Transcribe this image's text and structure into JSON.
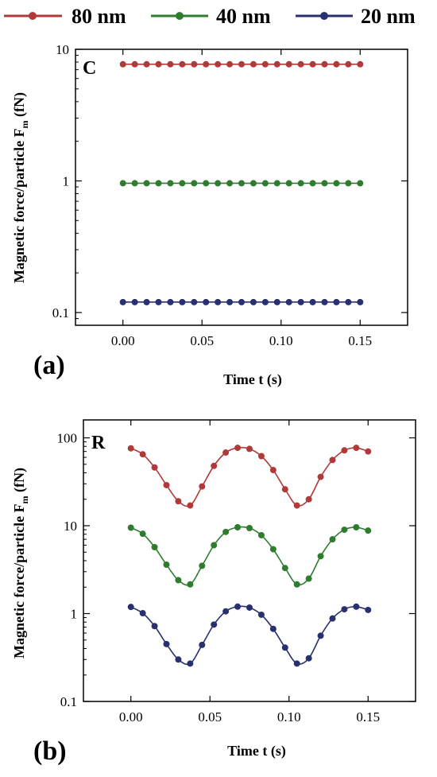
{
  "legend": [
    {
      "label": "80 nm",
      "color": "#b03a3a"
    },
    {
      "label": "40 nm",
      "color": "#2e7d2e"
    },
    {
      "label": "20 nm",
      "color": "#283070"
    }
  ],
  "panels": {
    "a": {
      "tag": "(a)",
      "letter": "C",
      "xlabel": "Time t (s)",
      "ylabel": "Magnetic force/particle F",
      "ylabel_sub": "m",
      "ylabel_unit": " (fN)"
    },
    "b": {
      "tag": "(b)",
      "letter": "R",
      "xlabel": "Time t (s)",
      "ylabel": "Magnetic force/particle F",
      "ylabel_sub": "m",
      "ylabel_unit": " (fN)"
    }
  },
  "chart_data": [
    {
      "type": "line",
      "panel": "a",
      "yscale": "log",
      "xlim": [
        -0.03,
        0.18
      ],
      "ylim": [
        0.08,
        10
      ],
      "xticks": [
        0.0,
        0.05,
        0.1,
        0.15
      ],
      "xtick_labels": [
        "0.00",
        "0.05",
        "0.10",
        "0.15"
      ],
      "yticks": [
        0.1,
        1,
        10
      ],
      "ytick_labels": [
        "0.1",
        "1",
        "10"
      ],
      "x": [
        0.0,
        0.0075,
        0.015,
        0.0225,
        0.03,
        0.0375,
        0.045,
        0.0525,
        0.06,
        0.0675,
        0.075,
        0.0825,
        0.09,
        0.0975,
        0.105,
        0.1125,
        0.12,
        0.1275,
        0.135,
        0.1425,
        0.15
      ],
      "series": [
        {
          "name": "80 nm",
          "color": "#b03a3a",
          "values": [
            7.7,
            7.7,
            7.7,
            7.7,
            7.7,
            7.7,
            7.7,
            7.7,
            7.7,
            7.7,
            7.7,
            7.7,
            7.7,
            7.7,
            7.7,
            7.7,
            7.7,
            7.7,
            7.7,
            7.7,
            7.7
          ]
        },
        {
          "name": "40 nm",
          "color": "#2e7d2e",
          "values": [
            0.96,
            0.96,
            0.96,
            0.96,
            0.96,
            0.96,
            0.96,
            0.96,
            0.96,
            0.96,
            0.96,
            0.96,
            0.96,
            0.96,
            0.96,
            0.96,
            0.96,
            0.96,
            0.96,
            0.96,
            0.96
          ]
        },
        {
          "name": "20 nm",
          "color": "#283070",
          "values": [
            0.12,
            0.12,
            0.12,
            0.12,
            0.12,
            0.12,
            0.12,
            0.12,
            0.12,
            0.12,
            0.12,
            0.12,
            0.12,
            0.12,
            0.12,
            0.12,
            0.12,
            0.12,
            0.12,
            0.12,
            0.12
          ]
        }
      ]
    },
    {
      "type": "line",
      "panel": "b",
      "yscale": "log",
      "xlim": [
        -0.03,
        0.18
      ],
      "ylim": [
        0.1,
        160
      ],
      "xticks": [
        0.0,
        0.05,
        0.1,
        0.15
      ],
      "xtick_labels": [
        "0.00",
        "0.05",
        "0.10",
        "0.15"
      ],
      "yticks": [
        0.1,
        1,
        10,
        100
      ],
      "ytick_labels": [
        "0.1",
        "1",
        "10",
        "100"
      ],
      "x": [
        0.0,
        0.0075,
        0.015,
        0.0225,
        0.03,
        0.0375,
        0.045,
        0.0525,
        0.06,
        0.0675,
        0.075,
        0.0825,
        0.09,
        0.0975,
        0.105,
        0.1125,
        0.12,
        0.1275,
        0.135,
        0.1425,
        0.15
      ],
      "series": [
        {
          "name": "80 nm",
          "color": "#b03a3a",
          "values": [
            76,
            65,
            46,
            29,
            19,
            17,
            28,
            48,
            68,
            77,
            75,
            62,
            43,
            26,
            17,
            20,
            36,
            56,
            72,
            77,
            70
          ]
        },
        {
          "name": "40 nm",
          "color": "#2e7d2e",
          "values": [
            9.5,
            8.1,
            5.7,
            3.6,
            2.4,
            2.15,
            3.5,
            6.0,
            8.5,
            9.6,
            9.4,
            7.8,
            5.4,
            3.3,
            2.15,
            2.5,
            4.5,
            7.0,
            9.0,
            9.6,
            8.8
          ]
        },
        {
          "name": "20 nm",
          "color": "#283070",
          "values": [
            1.19,
            1.01,
            0.72,
            0.45,
            0.3,
            0.27,
            0.44,
            0.75,
            1.06,
            1.2,
            1.17,
            0.97,
            0.67,
            0.41,
            0.27,
            0.31,
            0.56,
            0.88,
            1.12,
            1.2,
            1.1
          ]
        }
      ]
    }
  ]
}
